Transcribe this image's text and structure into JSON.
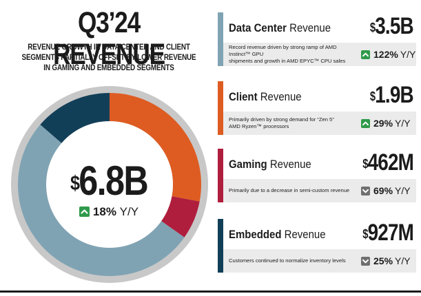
{
  "header": {
    "title": "Q3’24 REVENUE",
    "subtitle_lines": [
      "REVENUE GROWTH IN DATA CENTER AND CLIENT",
      "SEGMENTS PARTIALLY OFFSET BY LOWER REVENUE",
      "IN GAMING AND EMBEDDED SEGMENTS"
    ]
  },
  "total": {
    "currency": "$",
    "value": "6.8B",
    "yoy_pct": "18%",
    "yoy_unit": "Y/Y",
    "yoy_direction": "up"
  },
  "chart_data": {
    "type": "pie",
    "style": "donut",
    "categories": [
      "Data Center",
      "Client",
      "Gaming",
      "Embedded"
    ],
    "values": [
      3.5,
      1.9,
      0.462,
      0.927
    ],
    "unit": "$B",
    "colors": [
      "#7fa3b3",
      "#de5c22",
      "#b01e3d",
      "#123f58"
    ],
    "center_label": "$6.8B"
  },
  "segments": [
    {
      "name_bold": "Data Center",
      "name_rest": "Revenue",
      "currency": "$",
      "amount": "3.5B",
      "desc_lines": [
        "Record revenue driven by strong ramp of AMD Instinct™ GPU",
        "shipments and growth in AMD EPYC™ CPU sales"
      ],
      "yoy_pct": "122%",
      "yoy_unit": "Y/Y",
      "direction": "up",
      "color": "#7fa3b3"
    },
    {
      "name_bold": "Client",
      "name_rest": "Revenue",
      "currency": "$",
      "amount": "1.9B",
      "desc_lines": [
        "Primarily driven by strong demand for “Zen 5”",
        "AMD Ryzen™ processors"
      ],
      "yoy_pct": "29%",
      "yoy_unit": "Y/Y",
      "direction": "up",
      "color": "#de5c22"
    },
    {
      "name_bold": "Gaming",
      "name_rest": "Revenue",
      "currency": "$",
      "amount": "462M",
      "desc_lines": [
        "Primarily due to a decrease in semi-custom revenue"
      ],
      "yoy_pct": "69%",
      "yoy_unit": "Y/Y",
      "direction": "down",
      "color": "#b01e3d"
    },
    {
      "name_bold": "Embedded",
      "name_rest": "Revenue",
      "currency": "$",
      "amount": "927M",
      "desc_lines": [
        "Customers continued to normalize inventory levels"
      ],
      "yoy_pct": "25%",
      "yoy_unit": "Y/Y",
      "direction": "down",
      "color": "#123f58"
    }
  ]
}
